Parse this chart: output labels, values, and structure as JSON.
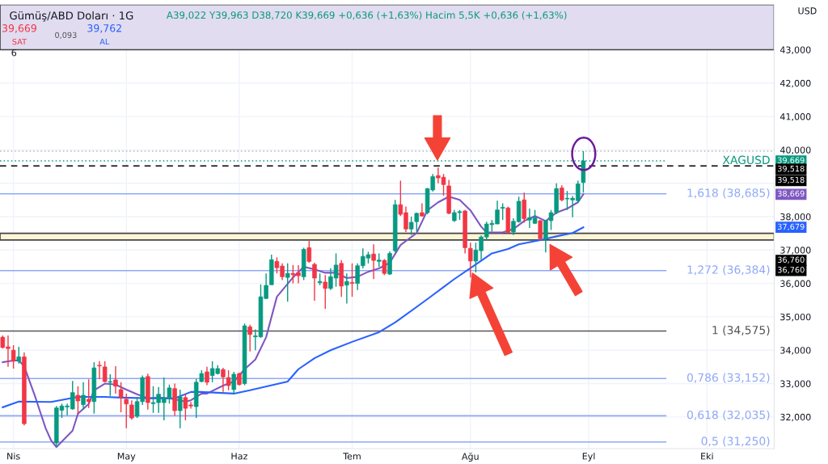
{
  "chart_data": {
    "type": "candlestick",
    "title": "Gümüş/ABD Doları · 1G",
    "subtitle": "A39,022 Y39,963 D38,720 K39,669 +0,636 (+1,63%) Hacim 5,5K +0,636 (+1,63%)",
    "categories": [
      null,
      null,
      "Nis",
      null,
      null,
      null,
      null,
      null,
      null,
      null,
      null,
      null,
      null,
      null,
      null,
      null,
      null,
      null,
      null,
      null,
      null,
      null,
      null,
      "May",
      null,
      null,
      null,
      null,
      null,
      null,
      null,
      null,
      null,
      null,
      null,
      null,
      null,
      null,
      null,
      null,
      null,
      null,
      null,
      null,
      "Haz",
      null,
      null,
      null,
      null,
      null,
      null,
      null,
      null,
      null,
      null,
      null,
      null,
      null,
      null,
      null,
      null,
      null,
      null,
      null,
      null,
      "Tem",
      null,
      null,
      null,
      null,
      null,
      null,
      null,
      null,
      null,
      null,
      null,
      null,
      null,
      null,
      null,
      null,
      null,
      null,
      null,
      null,
      null,
      "Ağu",
      null,
      null,
      null,
      null,
      null,
      null,
      null,
      null,
      null,
      null,
      null,
      null,
      null,
      null,
      null,
      null,
      null,
      null,
      null,
      null,
      null,
      "Eyl",
      null,
      null,
      null,
      null,
      null,
      null,
      null,
      null,
      null,
      null,
      null,
      null,
      null,
      null,
      null,
      null,
      null,
      null,
      null,
      null,
      null,
      "Eki",
      null,
      null,
      null,
      null,
      null,
      null,
      null,
      null,
      null,
      null,
      null,
      null
    ],
    "ohlc": [
      [
        34.39,
        34.44,
        34.05,
        34.08
      ],
      [
        34.1,
        34.44,
        33.5,
        34.05
      ],
      [
        34.0,
        34.15,
        33.45,
        33.67
      ],
      [
        33.67,
        34.1,
        33.6,
        33.8
      ],
      [
        33.8,
        33.93,
        31.75,
        31.8
      ],
      null,
      null,
      null,
      null,
      null,
      [
        31.22,
        32.33,
        31.1,
        32.27
      ],
      [
        32.2,
        32.4,
        31.97,
        32.33
      ],
      [
        32.3,
        32.4,
        32.05,
        32.33
      ],
      [
        32.24,
        33.08,
        32.22,
        32.73
      ],
      [
        32.65,
        32.92,
        32.07,
        32.48
      ],
      [
        32.37,
        33.04,
        32.22,
        32.65
      ],
      [
        32.53,
        33.13,
        32.27,
        32.46
      ],
      [
        32.46,
        33.64,
        32.1,
        33.47
      ],
      [
        33.55,
        33.67,
        33.13,
        33.53
      ],
      [
        33.5,
        33.67,
        33.04,
        33.06
      ],
      [
        33.04,
        33.28,
        32.63,
        33.06
      ],
      [
        33.11,
        33.52,
        32.7,
        32.92
      ],
      [
        32.82,
        33.04,
        32.14,
        32.58
      ],
      [
        32.53,
        32.7,
        31.66,
        32.39
      ],
      [
        32.36,
        32.5,
        31.92,
        31.97
      ],
      [
        32.02,
        32.6,
        31.97,
        32.46
      ],
      [
        32.46,
        33.24,
        32.36,
        33.18
      ],
      [
        33.21,
        33.3,
        32.22,
        32.43
      ],
      [
        32.4,
        32.92,
        32.12,
        32.43
      ],
      [
        32.43,
        32.9,
        32.12,
        32.68
      ],
      [
        32.43,
        33.18,
        31.9,
        32.56
      ],
      [
        32.56,
        32.97,
        32.4,
        32.87
      ],
      [
        32.85,
        33.0,
        32.04,
        32.19
      ],
      [
        32.19,
        32.82,
        31.66,
        32.6
      ],
      [
        32.58,
        32.7,
        31.9,
        32.26
      ],
      [
        32.36,
        32.45,
        32.25,
        32.33
      ],
      [
        32.31,
        33.14,
        31.97,
        33.04
      ],
      [
        33.06,
        33.4,
        33.04,
        33.3
      ],
      [
        33.35,
        33.5,
        32.95,
        33.04
      ],
      [
        33.24,
        33.67,
        33.04,
        33.45
      ],
      [
        33.3,
        33.55,
        33.27,
        33.45
      ],
      [
        33.42,
        33.47,
        32.75,
        33.2
      ],
      [
        33.18,
        33.4,
        32.8,
        32.94
      ],
      [
        32.82,
        33.35,
        32.7,
        33.28
      ],
      [
        33.3,
        33.33,
        32.94,
        32.97
      ],
      [
        33.0,
        34.8,
        32.95,
        34.73
      ],
      [
        34.7,
        34.76,
        33.96,
        34.47
      ],
      [
        34.4,
        34.62,
        34.0,
        34.43
      ],
      [
        34.4,
        35.97,
        34.37,
        35.6
      ],
      [
        35.55,
        36.3,
        35.53,
        35.94
      ],
      [
        35.96,
        36.86,
        35.96,
        36.71
      ],
      [
        36.66,
        36.78,
        36.3,
        36.47
      ],
      [
        36.52,
        36.6,
        36.1,
        36.2
      ],
      [
        36.18,
        36.6,
        35.45,
        36.3
      ],
      [
        36.3,
        36.55,
        36.0,
        36.26
      ],
      [
        36.32,
        36.55,
        36.0,
        36.23
      ],
      [
        36.2,
        37.07,
        36.1,
        37.02
      ],
      [
        37.07,
        37.27,
        36.62,
        36.66
      ],
      [
        36.57,
        36.62,
        35.48,
        36.16
      ],
      [
        36.02,
        36.3,
        35.95,
        36.06
      ],
      [
        36.04,
        36.25,
        35.24,
        35.85
      ],
      [
        35.85,
        36.45,
        35.8,
        36.2
      ],
      [
        36.16,
        36.9,
        35.9,
        36.55
      ],
      [
        36.6,
        36.7,
        35.6,
        35.92
      ],
      [
        35.95,
        36.3,
        35.4,
        36.06
      ],
      [
        36.03,
        36.6,
        35.6,
        36.0
      ],
      [
        36.0,
        36.6,
        35.8,
        36.53
      ],
      [
        36.53,
        37.05,
        36.45,
        36.81
      ],
      [
        36.76,
        36.95,
        36.6,
        36.86
      ],
      [
        36.88,
        37.17,
        36.13,
        36.69
      ],
      [
        36.66,
        36.9,
        36.5,
        36.7
      ],
      [
        36.69,
        36.73,
        36.25,
        36.3
      ],
      [
        36.28,
        36.96,
        36.25,
        36.9
      ],
      [
        36.98,
        38.5,
        36.93,
        38.36
      ],
      [
        38.36,
        39.08,
        38.02,
        38.07
      ],
      [
        38.12,
        38.3,
        37.54,
        37.63
      ],
      [
        37.63,
        38.0,
        37.45,
        37.83
      ],
      [
        37.85,
        38.12,
        37.55,
        38.1
      ],
      [
        38.12,
        38.4,
        38.0,
        38.02
      ],
      [
        38.12,
        38.86,
        38.07,
        38.84
      ],
      [
        38.8,
        39.28,
        38.75,
        39.2
      ],
      [
        39.23,
        39.47,
        39.0,
        39.16
      ],
      [
        39.18,
        39.28,
        38.63,
        38.96
      ],
      [
        38.92,
        39.1,
        38.07,
        38.1
      ],
      [
        37.88,
        38.2,
        37.84,
        38.12
      ],
      [
        38.12,
        38.2,
        37.9,
        38.15
      ],
      [
        38.17,
        38.2,
        36.9,
        37.07
      ],
      [
        37.05,
        37.22,
        36.18,
        36.67
      ],
      [
        36.67,
        37.22,
        36.33,
        37.0
      ],
      [
        36.98,
        37.44,
        36.7,
        37.39
      ],
      [
        37.39,
        37.85,
        37.3,
        37.78
      ],
      [
        37.76,
        37.9,
        37.55,
        37.8
      ],
      [
        37.78,
        38.48,
        37.78,
        38.2
      ],
      [
        38.25,
        38.4,
        37.9,
        38.28
      ],
      [
        38.26,
        38.3,
        37.5,
        37.53
      ],
      [
        37.54,
        37.95,
        37.45,
        37.86
      ],
      [
        37.85,
        38.6,
        37.82,
        38.46
      ],
      [
        38.5,
        38.72,
        37.82,
        37.94
      ],
      [
        37.9,
        38.24,
        37.66,
        37.97
      ],
      [
        37.8,
        38.2,
        37.78,
        37.97
      ],
      [
        37.88,
        37.9,
        37.3,
        37.34
      ],
      [
        37.34,
        37.9,
        36.93,
        37.88
      ],
      [
        37.88,
        38.2,
        37.6,
        38.12
      ],
      [
        38.12,
        39.0,
        38.07,
        38.84
      ],
      [
        38.86,
        38.94,
        38.46,
        38.5
      ],
      [
        38.53,
        38.77,
        38.2,
        38.55
      ],
      [
        38.5,
        38.62,
        37.98,
        38.55
      ],
      [
        38.48,
        39.08,
        38.42,
        38.98
      ],
      [
        39.022,
        39.963,
        38.72,
        39.669
      ],
      null,
      null,
      null,
      null,
      null,
      null,
      null,
      null,
      null,
      null,
      null,
      null,
      null,
      null,
      null,
      null,
      null,
      null,
      null,
      null,
      null,
      null,
      null,
      null,
      null,
      null,
      null,
      null,
      null,
      null,
      null,
      null,
      null,
      null,
      null
    ],
    "series": [
      {
        "type": "line",
        "color": "#7e57c2",
        "values": [
          33.64,
          null,
          33.69,
          33.69,
          33.52,
          null,
          32.63,
          32.14,
          31.66,
          31.3,
          31.1,
          null,
          null,
          31.59,
          32.1,
          null,
          32.39,
          32.8,
          null,
          33.0,
          null,
          32.97,
          null,
          32.82,
          null,
          32.68,
          null,
          32.56,
          null,
          32.58,
          null,
          32.56,
          null,
          null,
          32.46,
          32.5,
          null,
          32.7,
          32.7,
          null,
          null,
          32.94,
          null,
          33.06,
          null,
          33.43,
          null,
          33.72,
          null,
          34.39,
          null,
          35.6,
          null,
          null,
          36.18,
          null,
          36.5,
          null,
          36.42,
          null,
          36.32,
          null,
          36.32,
          null,
          36.16,
          null,
          36.2,
          null,
          36.35,
          null,
          36.45,
          null,
          36.62,
          null,
          37.15,
          null,
          null,
          37.51,
          null,
          38.19,
          null,
          38.43,
          null,
          38.6,
          null,
          38.5,
          null,
          38.19,
          null,
          37.7,
          37.53,
          null,
          null,
          37.53,
          null,
          37.63,
          null,
          37.87,
          null,
          38.02,
          null,
          37.87,
          null,
          38.12,
          null,
          38.24,
          null,
          38.43,
          38.67,
          null,
          null,
          null,
          null,
          null,
          null,
          null,
          null,
          null,
          null,
          null,
          null,
          null,
          null,
          null,
          null,
          null,
          null,
          null,
          null,
          null,
          null,
          null,
          null,
          null,
          null,
          null,
          null,
          null,
          null,
          null,
          null,
          null,
          null,
          null
        ]
      },
      {
        "type": "line",
        "color": "#2962ff",
        "values": [
          32.29,
          null,
          null,
          32.46,
          null,
          null,
          null,
          null,
          null,
          32.45,
          null,
          null,
          null,
          null,
          32.6,
          null,
          null,
          null,
          null,
          32.6,
          null,
          null,
          32.58,
          null,
          null,
          null,
          null,
          null,
          32.56,
          null,
          null,
          null,
          32.56,
          null,
          null,
          32.75,
          null,
          32.75,
          null,
          null,
          null,
          null,
          null,
          32.7,
          null,
          null,
          32.8,
          null,
          null,
          null,
          null,
          null,
          null,
          33.06,
          null,
          33.43,
          null,
          null,
          33.76,
          null,
          null,
          34.0,
          null,
          null,
          null,
          34.25,
          null,
          null,
          null,
          null,
          34.54,
          null,
          null,
          34.83,
          null,
          null,
          null,
          null,
          null,
          35.53,
          null,
          null,
          35.89,
          null,
          36.13,
          null,
          null,
          null,
          36.57,
          null,
          null,
          36.9,
          null,
          null,
          37.03,
          null,
          37.17,
          null,
          null,
          null,
          37.3,
          null,
          null,
          37.41,
          null,
          null,
          37.51,
          null,
          37.68,
          null,
          null,
          null,
          null,
          null,
          null,
          null,
          null,
          null,
          null,
          null,
          null,
          null,
          null,
          null,
          null,
          null,
          null,
          null,
          null,
          null,
          null,
          null,
          null,
          null,
          null,
          null,
          null,
          null,
          null,
          null,
          null,
          null,
          null,
          null
        ]
      }
    ],
    "ylim": [
      31.05,
      44.35
    ],
    "yticks": [
      {
        "value": 32,
        "label": "32,000"
      },
      {
        "value": 33,
        "label": "33,000"
      },
      {
        "value": 34,
        "label": "34,000"
      },
      {
        "value": 35,
        "label": "35,000"
      },
      {
        "value": 36,
        "label": "36,000"
      },
      {
        "value": 37,
        "label": "37,000"
      },
      {
        "value": 38,
        "label": "38,000"
      },
      {
        "value": 39,
        "label": null
      },
      {
        "value": 40,
        "label": "40,000"
      },
      {
        "value": 41,
        "label": "41,000"
      },
      {
        "value": 42,
        "label": "42,000"
      },
      {
        "value": 43,
        "label": "43,000"
      }
    ],
    "grid": true,
    "ref_lines": [
      {
        "axis": "y",
        "value": 39.963,
        "color": "#b2b5be",
        "line_style": "dotted"
      },
      {
        "axis": "y",
        "value": 39.669,
        "color": "#089981",
        "line_style": "dotted",
        "label": "XAGUSD"
      },
      {
        "axis": "y",
        "value": 39.518,
        "color": "#000000",
        "line_style": "dashed"
      },
      {
        "axis": "y",
        "value": 38.685,
        "color": "#8fa8f8",
        "line_style": "solid",
        "label": "1,618 (38,685)"
      },
      {
        "axis": "y",
        "value": 36.384,
        "color": "#8fa8f8",
        "line_style": "solid",
        "label": "1,272 (36,384)"
      },
      {
        "axis": "y",
        "value": 34.575,
        "color": "#555555",
        "line_style": "solid",
        "label": "1 (34,575)"
      },
      {
        "axis": "y",
        "value": 33.152,
        "color": "#8fa8f8",
        "line_style": "solid",
        "label": "0,786 (33,152)"
      },
      {
        "axis": "y",
        "value": 32.035,
        "color": "#8fa8f8",
        "line_style": "solid",
        "label": "0,618 (32,035)"
      },
      {
        "axis": "y",
        "value": 31.25,
        "color": "#8fa8f8",
        "line_style": "solid",
        "label": "0,5 (31,250)"
      }
    ],
    "bands": [
      {
        "axis": "y",
        "from": 43,
        "to": 44.35,
        "color": "#e1dcf0"
      },
      {
        "axis": "y",
        "from": 37.3,
        "to": 37.5,
        "color": "#fdf5d6"
      }
    ],
    "annotations": [
      "39,669",
      "SAT",
      "0,093",
      "39,762",
      "AL",
      "6",
      "USD",
      "39,669",
      "39,518",
      "39,518",
      "38,669",
      "37,679",
      "36,760",
      "36,760"
    ]
  }
}
